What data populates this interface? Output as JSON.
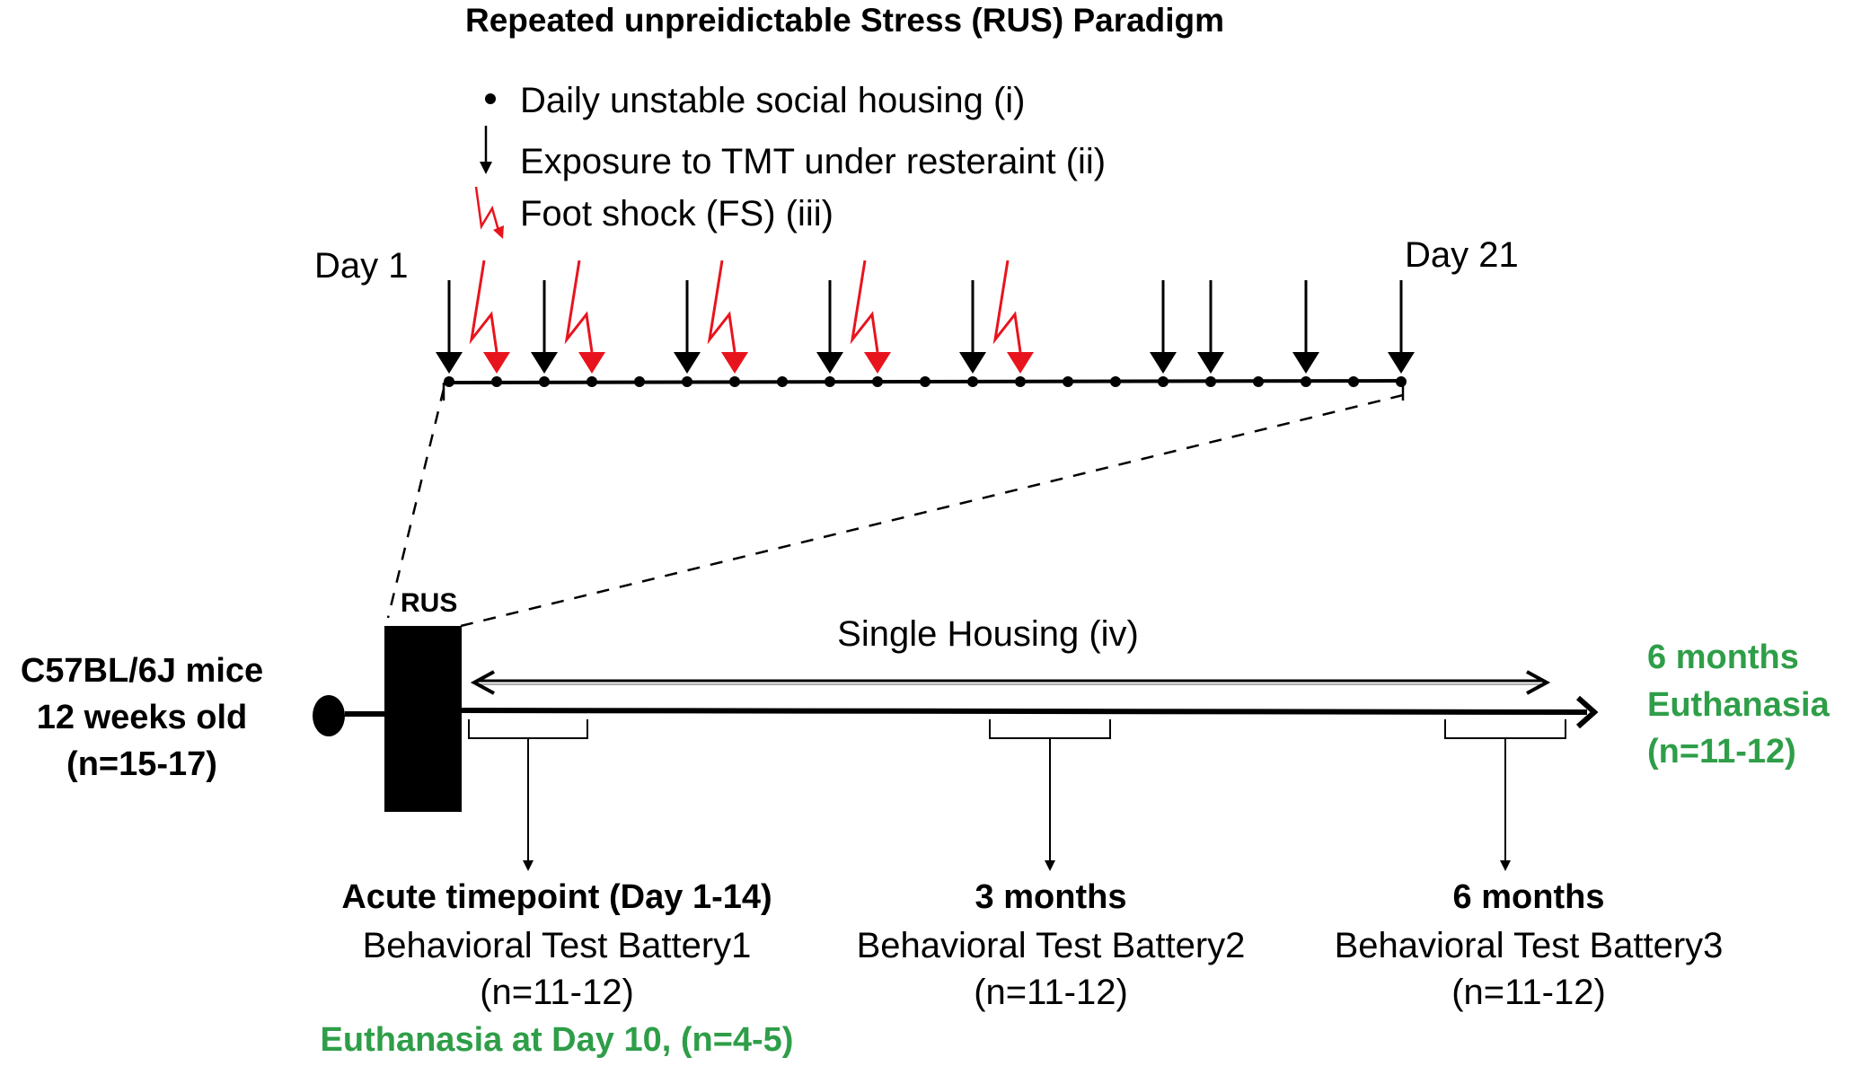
{
  "title": "Repeated unpreidictable Stress (RUS) Paradigm",
  "legend": {
    "item1": "Daily unstable social housing (i)",
    "item2": "Exposure to TMT under resteraint (ii)",
    "item3": "Foot shock (FS) (iii)"
  },
  "timeline": {
    "start_label": "Day 1",
    "end_label": "Day 21",
    "total_days": 21,
    "tmt_days": [
      1,
      3,
      6,
      9,
      12,
      16,
      17,
      19,
      21
    ],
    "fs_days": [
      2,
      4,
      7,
      10,
      13
    ],
    "all_days_have_dot": true
  },
  "study": {
    "mice_line1": "C57BL/6J mice",
    "mice_line2": "12 weeks old",
    "mice_line3": "(n=15-17)",
    "rus_label": "RUS",
    "single_housing": "Single Housing (iv)",
    "end_line1": "6 months",
    "end_line2": "Euthanasia",
    "end_line3": "(n=11-12)"
  },
  "timepoints": [
    {
      "title": "Acute timepoint (Day 1-14)",
      "battery": "Behavioral Test Battery1",
      "n": "(n=11-12)",
      "extra": "Euthanasia at Day 10, (n=4-5)"
    },
    {
      "title": "3 months",
      "battery": "Behavioral Test Battery2",
      "n": "(n=11-12)"
    },
    {
      "title": "6 months",
      "battery": "Behavioral Test Battery3",
      "n": "(n=11-12)"
    }
  ],
  "colors": {
    "black": "#000000",
    "red": "#e8141d",
    "green": "#2e9e48"
  }
}
